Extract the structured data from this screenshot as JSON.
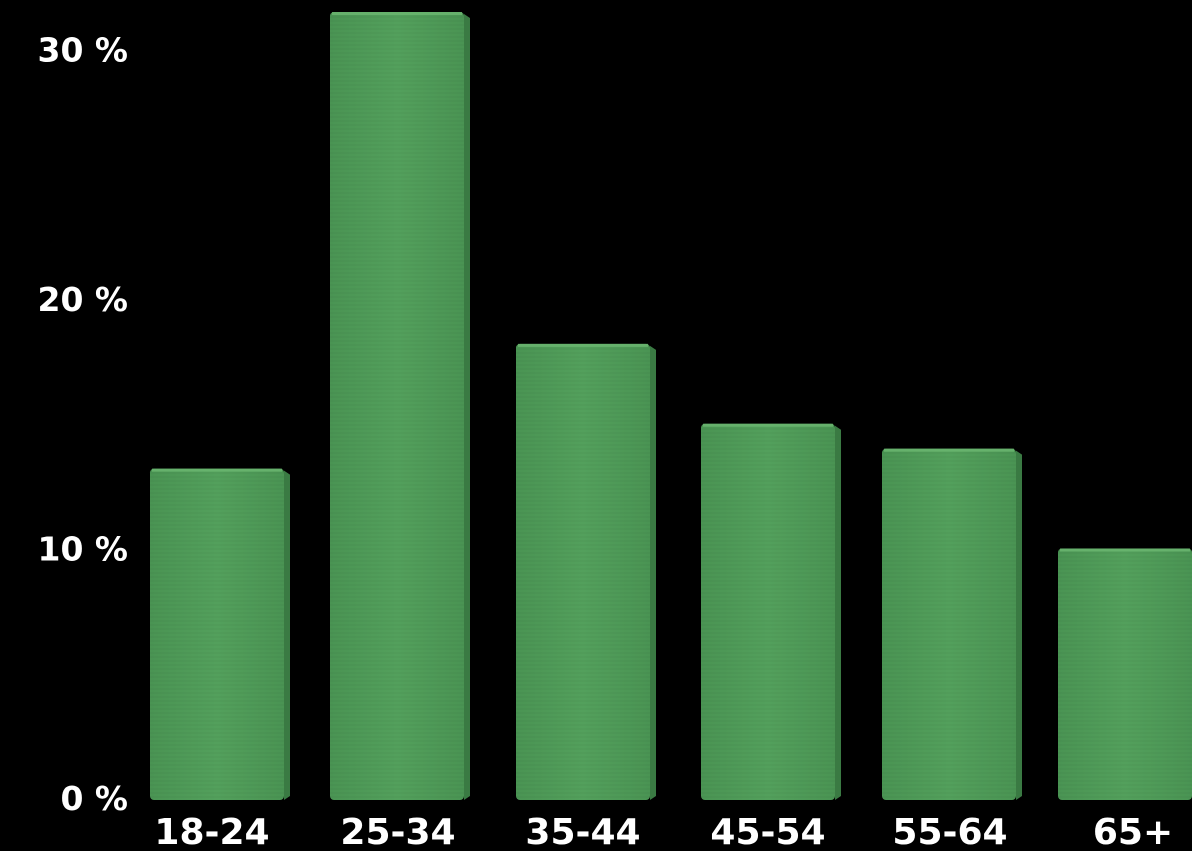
{
  "chart_data": {
    "type": "bar",
    "categories": [
      "18-24",
      "25-34",
      "35-44",
      "45-54",
      "55-64",
      "65+"
    ],
    "values": [
      13.2,
      31.5,
      18.2,
      15.0,
      14.0,
      10.0
    ],
    "y_ticks": [
      {
        "value": 0,
        "label": "0 %"
      },
      {
        "value": 10,
        "label": "10 %"
      },
      {
        "value": 20,
        "label": "20 %"
      },
      {
        "value": 30,
        "label": "30 %"
      }
    ],
    "ylim": [
      0,
      31.5
    ],
    "grid": false,
    "legend": "none",
    "title": "",
    "xlabel": "",
    "ylabel": ""
  },
  "colors": {
    "background": "#000000",
    "bar_face": "#4f9a58",
    "bar_side": "#3a7a43",
    "bar_top": "#6db872",
    "text": "#ffffff"
  }
}
